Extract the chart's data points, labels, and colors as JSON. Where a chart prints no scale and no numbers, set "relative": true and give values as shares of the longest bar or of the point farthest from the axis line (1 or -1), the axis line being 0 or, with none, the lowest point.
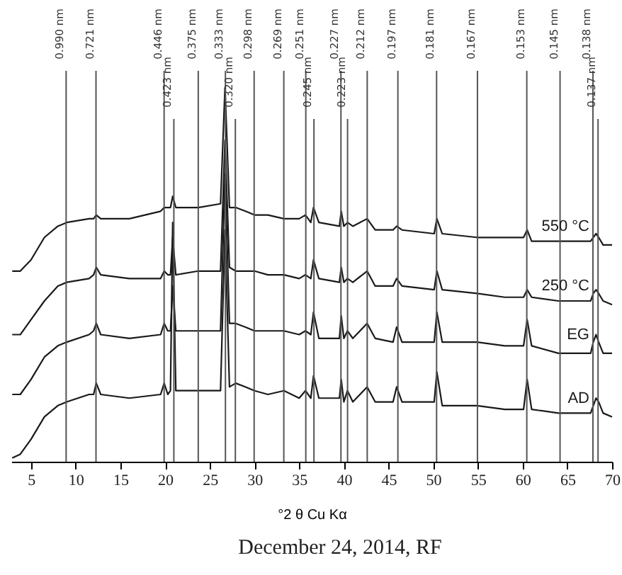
{
  "chart_data": {
    "type": "line",
    "relative": true,
    "xlabel": "°2 θ Cu Kα",
    "annotations": [
      "December 24, 2014, RF"
    ],
    "x": [
      2.9,
      3.8,
      5,
      6.5,
      8,
      9,
      11.5,
      12.0,
      12.3,
      12.8,
      16,
      19.5,
      19.9,
      20.3,
      20.6,
      20.85,
      21.2,
      23.7,
      26.2,
      26.7,
      27.2,
      27.9,
      29,
      30,
      31.5,
      33.3,
      35,
      35.7,
      36.3,
      36.6,
      37.2,
      39.5,
      39.7,
      40,
      40.4,
      41,
      42.6,
      43.5,
      45.5,
      45.9,
      46.5,
      50.1,
      50.4,
      51,
      54.9,
      58,
      60.1,
      60.5,
      61,
      64,
      67.6,
      67.9,
      68.2,
      68.5,
      69,
      70
    ],
    "xlim": [
      2.8,
      70
    ],
    "xticks": [
      5,
      10,
      15,
      20,
      25,
      30,
      35,
      40,
      45,
      50,
      55,
      60,
      65,
      70
    ],
    "series": [
      {
        "name": "AD",
        "color": "#1a1a1a",
        "values": [
          0.01,
          0.02,
          0.06,
          0.12,
          0.15,
          0.16,
          0.18,
          0.18,
          0.21,
          0.18,
          0.17,
          0.18,
          0.21,
          0.18,
          0.19,
          0.64,
          0.19,
          0.19,
          0.19,
          0.62,
          0.2,
          0.21,
          0.2,
          0.19,
          0.18,
          0.19,
          0.17,
          0.19,
          0.17,
          0.23,
          0.17,
          0.17,
          0.22,
          0.16,
          0.19,
          0.16,
          0.2,
          0.16,
          0.16,
          0.2,
          0.16,
          0.16,
          0.24,
          0.15,
          0.15,
          0.14,
          0.14,
          0.22,
          0.14,
          0.13,
          0.13,
          0.15,
          0.17,
          0.16,
          0.13,
          0.12
        ]
      },
      {
        "name": "EG",
        "color": "#1a1a1a",
        "values": [
          0.18,
          0.18,
          0.22,
          0.28,
          0.31,
          0.32,
          0.34,
          0.35,
          0.37,
          0.34,
          0.33,
          0.34,
          0.37,
          0.35,
          0.35,
          0.47,
          0.35,
          0.35,
          0.35,
          0.77,
          0.37,
          0.37,
          0.36,
          0.35,
          0.35,
          0.35,
          0.34,
          0.35,
          0.34,
          0.4,
          0.33,
          0.33,
          0.39,
          0.33,
          0.35,
          0.33,
          0.37,
          0.33,
          0.32,
          0.36,
          0.32,
          0.32,
          0.4,
          0.32,
          0.32,
          0.31,
          0.31,
          0.38,
          0.31,
          0.29,
          0.29,
          0.32,
          0.34,
          0.32,
          0.29,
          0.29
        ]
      },
      {
        "name": "250 °C",
        "color": "#1a1a1a",
        "values": [
          0.34,
          0.34,
          0.38,
          0.43,
          0.47,
          0.48,
          0.49,
          0.5,
          0.52,
          0.5,
          0.49,
          0.49,
          0.51,
          0.5,
          0.5,
          0.6,
          0.5,
          0.51,
          0.51,
          0.86,
          0.52,
          0.51,
          0.51,
          0.51,
          0.5,
          0.5,
          0.49,
          0.5,
          0.49,
          0.54,
          0.49,
          0.48,
          0.52,
          0.48,
          0.49,
          0.48,
          0.51,
          0.47,
          0.47,
          0.49,
          0.47,
          0.46,
          0.51,
          0.46,
          0.45,
          0.44,
          0.44,
          0.46,
          0.44,
          0.43,
          0.43,
          0.45,
          0.46,
          0.45,
          0.43,
          0.42
        ]
      },
      {
        "name": "550 °C",
        "color": "#1a1a1a",
        "values": [
          0.51,
          0.51,
          0.54,
          0.6,
          0.63,
          0.64,
          0.65,
          0.65,
          0.66,
          0.65,
          0.65,
          0.67,
          0.68,
          0.68,
          0.68,
          0.71,
          0.68,
          0.68,
          0.69,
          1,
          0.68,
          0.68,
          0.67,
          0.66,
          0.66,
          0.65,
          0.65,
          0.66,
          0.64,
          0.68,
          0.64,
          0.63,
          0.67,
          0.63,
          0.64,
          0.63,
          0.65,
          0.62,
          0.62,
          0.63,
          0.62,
          0.61,
          0.65,
          0.61,
          0.6,
          0.6,
          0.6,
          0.62,
          0.59,
          0.59,
          0.59,
          0.6,
          0.61,
          0.6,
          0.58,
          0.58
        ]
      }
    ],
    "ref_lines": [
      {
        "axis": "x",
        "value": 8.93,
        "label": "0.990 nm"
      },
      {
        "axis": "x",
        "value": 12.27,
        "label": "0.721 nm"
      },
      {
        "axis": "x",
        "value": 19.89,
        "label": "0.446 nm"
      },
      {
        "axis": "x",
        "value": 20.98,
        "label": "0.423 nm"
      },
      {
        "axis": "x",
        "value": 23.71,
        "label": "0.375 nm"
      },
      {
        "axis": "x",
        "value": 26.75,
        "label": "0.333 nm"
      },
      {
        "axis": "x",
        "value": 27.86,
        "label": "0.320 nm"
      },
      {
        "axis": "x",
        "value": 29.96,
        "label": "0.298 nm"
      },
      {
        "axis": "x",
        "value": 33.28,
        "label": "0.269 nm"
      },
      {
        "axis": "x",
        "value": 35.74,
        "label": "0.251 nm"
      },
      {
        "axis": "x",
        "value": 36.65,
        "label": "0.245 nm"
      },
      {
        "axis": "x",
        "value": 39.67,
        "label": "0.227 nm"
      },
      {
        "axis": "x",
        "value": 40.41,
        "label": "0.223 nm"
      },
      {
        "axis": "x",
        "value": 42.61,
        "label": "0.212 nm"
      },
      {
        "axis": "x",
        "value": 46.04,
        "label": "0.197 nm"
      },
      {
        "axis": "x",
        "value": 50.37,
        "label": "0.181 nm"
      },
      {
        "axis": "x",
        "value": 54.94,
        "label": "0.167 nm"
      },
      {
        "axis": "x",
        "value": 60.46,
        "label": "0.153 nm"
      },
      {
        "axis": "x",
        "value": 64.18,
        "label": "0.145 nm"
      },
      {
        "axis": "x",
        "value": 67.86,
        "label": "0.138 nm"
      },
      {
        "axis": "x",
        "value": 68.43,
        "label": "0.137 nm"
      }
    ]
  }
}
